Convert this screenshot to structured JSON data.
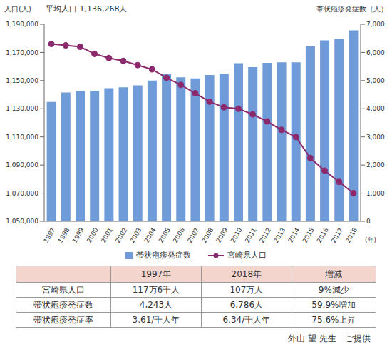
{
  "chart_data": {
    "type": "bar_line",
    "subtitle": "平均人口 1,136,268人",
    "y_label": "人口(人)",
    "y2_label": "帯状疱疹発症数（人）",
    "x_label": "(年)",
    "categories": [
      "1997",
      "1998",
      "1999",
      "2000",
      "2001",
      "2002",
      "2003",
      "2004",
      "2005",
      "2006",
      "2007",
      "2008",
      "2009",
      "2010",
      "2011",
      "2012",
      "2013",
      "2014",
      "2015",
      "2016",
      "2017",
      "2018"
    ],
    "series": [
      {
        "name": "帯状疱疹発症数",
        "type": "bar",
        "color": "#6f9cd8",
        "axis": "y2",
        "values": [
          4243,
          4580,
          4630,
          4640,
          4730,
          4760,
          4830,
          5000,
          5230,
          5120,
          5080,
          5200,
          5250,
          5620,
          5480,
          5630,
          5650,
          5650,
          6230,
          6430,
          6480,
          6786
        ]
      },
      {
        "name": "宮崎県人口",
        "type": "line",
        "color": "#8c2a6e",
        "marker": "circle",
        "axis": "y",
        "values": [
          1176000,
          1175000,
          1174000,
          1169000,
          1166000,
          1164000,
          1161000,
          1158000,
          1152000,
          1147000,
          1141000,
          1135000,
          1131000,
          1130000,
          1126000,
          1121000,
          1115000,
          1110000,
          1095000,
          1086000,
          1078000,
          1070000
        ]
      }
    ],
    "ylim": [
      1050000,
      1190000
    ],
    "yticks": [
      {
        "value": 1050000,
        "label": "1,050,000"
      },
      {
        "value": 1070000,
        "label": "1,070,000"
      },
      {
        "value": 1090000,
        "label": "1,090,000"
      },
      {
        "value": 1110000,
        "label": "1,110,000"
      },
      {
        "value": 1130000,
        "label": "1,130,000"
      },
      {
        "value": 1150000,
        "label": "1,150,000"
      },
      {
        "value": 1170000,
        "label": "1,170,000"
      },
      {
        "value": 1190000,
        "label": "1,190,000"
      }
    ],
    "y2lim": [
      0,
      7000
    ],
    "y2ticks": [
      0,
      {
        "value": 1000,
        "label": "1,000"
      },
      {
        "value": 2000,
        "label": "2,000"
      },
      {
        "value": 3000,
        "label": "3,000"
      },
      {
        "value": 4000,
        "label": "4,000"
      },
      {
        "value": 5000,
        "label": "5,000"
      },
      {
        "value": 6000,
        "label": "6,000"
      },
      {
        "value": 7000,
        "label": "7,000"
      }
    ],
    "grid": false,
    "legend": "bottom"
  },
  "table": {
    "header": [
      "1997年",
      "2018年",
      "増減"
    ],
    "rows": [
      [
        "宮崎県人口",
        "117万6千人",
        "107万人",
        "9%減少"
      ],
      [
        "帯状疱疹発症数",
        "4,243人",
        "6,786人",
        "59.9%増加"
      ],
      [
        "帯状疱疹発症率",
        "3.61/千人年",
        "6.34/千人年",
        "75.6%上昇"
      ]
    ]
  },
  "credit": "外山 望 先生　ご提供"
}
